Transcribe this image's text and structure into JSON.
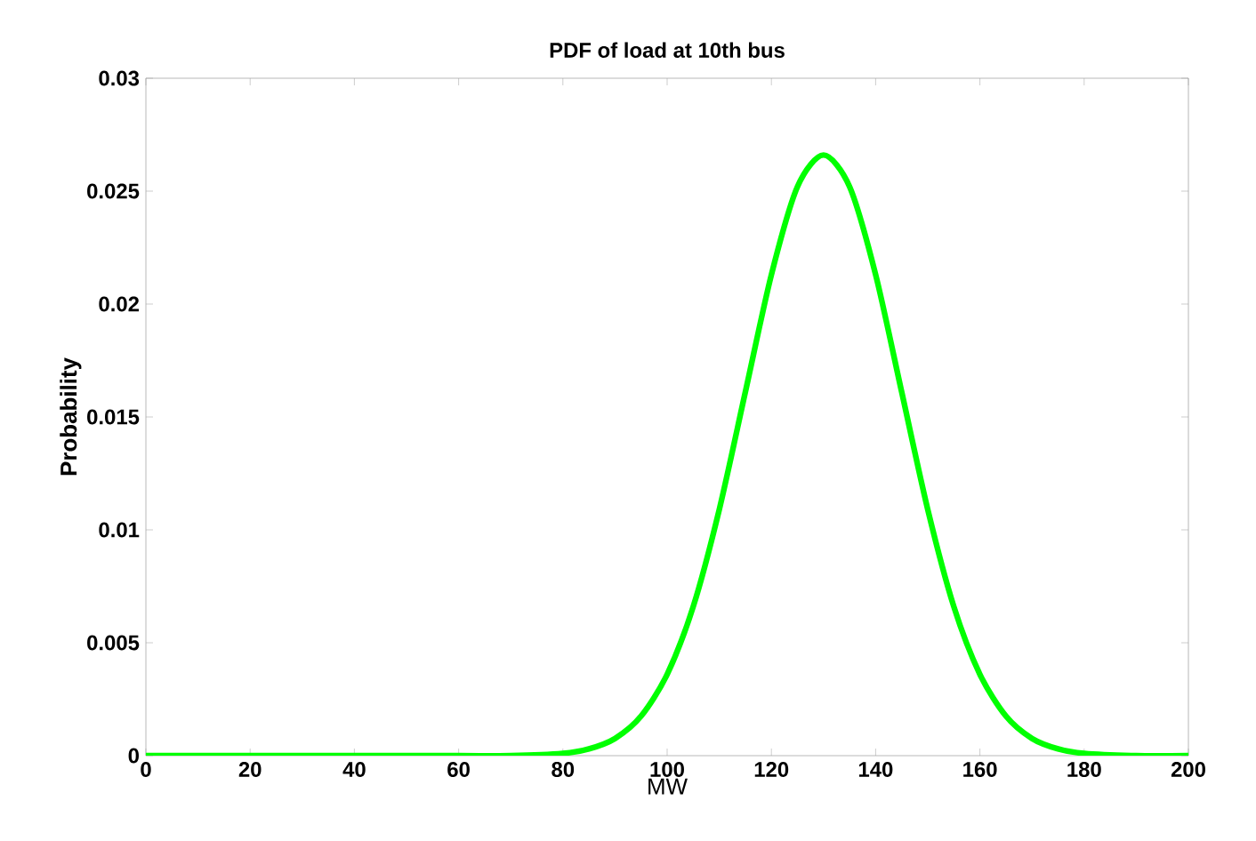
{
  "chart_data": {
    "type": "line",
    "title": "PDF of load at 10th bus",
    "xlabel": "MW",
    "ylabel": "Probability",
    "x": [
      0,
      20,
      40,
      60,
      70,
      80,
      85,
      90,
      95,
      100,
      105,
      110,
      115,
      120,
      125,
      130,
      135,
      140,
      145,
      150,
      155,
      160,
      165,
      170,
      175,
      180,
      190,
      200
    ],
    "series": [
      {
        "color": "#00ff00",
        "values": [
          0,
          0,
          0,
          0,
          0,
          0.0001,
          0.0003,
          0.00076,
          0.00175,
          0.0036,
          0.0066,
          0.0109,
          0.0161,
          0.0213,
          0.0252,
          0.0266,
          0.0252,
          0.0213,
          0.0161,
          0.0109,
          0.0066,
          0.0036,
          0.00175,
          0.00076,
          0.0003,
          0.0001,
          0,
          0
        ]
      }
    ],
    "xlim": [
      0,
      200
    ],
    "ylim": [
      0,
      0.03
    ],
    "xticks": [
      0,
      20,
      40,
      60,
      80,
      100,
      120,
      140,
      160,
      180,
      200
    ],
    "yticks": [
      {
        "value": 0,
        "label": "0"
      },
      {
        "value": 0.005,
        "label": "0.005"
      },
      {
        "value": 0.01,
        "label": "0.01"
      },
      {
        "value": 0.015,
        "label": "0.015"
      },
      {
        "value": 0.02,
        "label": "0.02"
      },
      {
        "value": 0.025,
        "label": "0.025"
      },
      {
        "value": 0.03,
        "label": "0.03"
      }
    ],
    "marker": "none",
    "line_style": "solid"
  }
}
